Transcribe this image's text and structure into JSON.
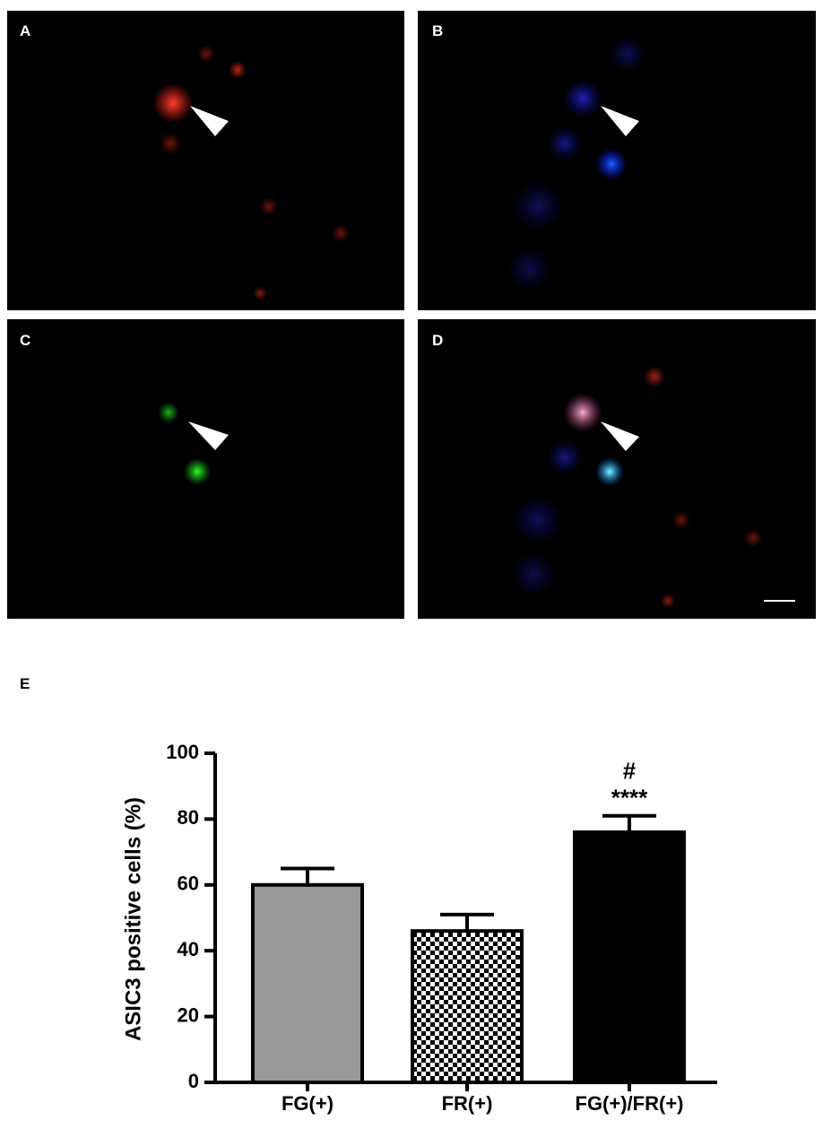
{
  "panel_labels": [
    "A",
    "B",
    "C",
    "D"
  ],
  "chart_data": {
    "type": "bar",
    "label": "E",
    "y_label": "ASIC3 positive cells (%)",
    "categories": [
      "FG(+)",
      "FR(+)",
      "FG(+)/FR(+)"
    ],
    "values": [
      60,
      46,
      76
    ],
    "errors": [
      5,
      5,
      5
    ],
    "colors": [
      "#999999",
      "#ffffff",
      "#000000"
    ],
    "checkered": [
      false,
      true,
      false
    ],
    "annotations": [
      {
        "text": "#",
        "category": "FG(+)/FR(+)"
      },
      {
        "text": "****",
        "category": "FG(+)/FR(+)"
      }
    ],
    "ylim": [
      0,
      100
    ],
    "yticks": [
      0,
      20,
      40,
      60,
      80,
      100
    ],
    "grid": false
  }
}
